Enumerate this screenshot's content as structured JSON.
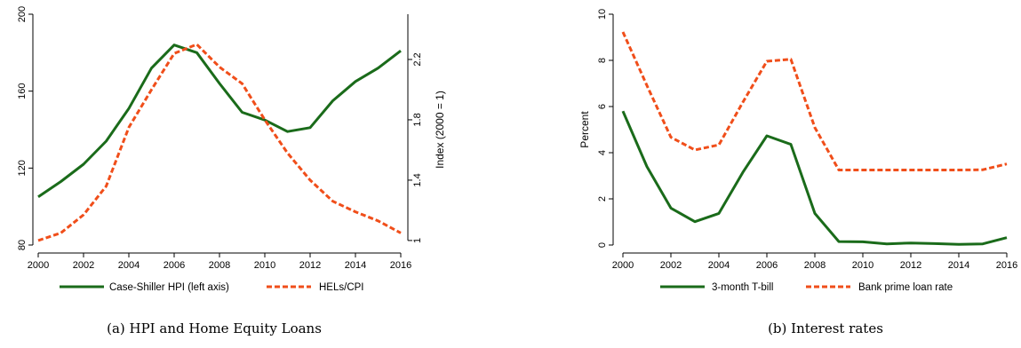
{
  "chart_data": [
    {
      "type": "line",
      "caption": "(a) HPI and Home Equity Loans",
      "x": [
        2000,
        2001,
        2002,
        2003,
        2004,
        2005,
        2006,
        2007,
        2008,
        2009,
        2010,
        2011,
        2012,
        2013,
        2014,
        2015,
        2016
      ],
      "xticks": [
        2000,
        2002,
        2004,
        2006,
        2008,
        2010,
        2012,
        2014,
        2016
      ],
      "ylim_left": [
        80,
        200
      ],
      "yticks_left": [
        80,
        120,
        160,
        200
      ],
      "ylim_right": [
        0.97,
        2.5
      ],
      "yticks_right": [
        1,
        1.4,
        1.8,
        2.2
      ],
      "ylabel_right": "Index (2000 = 1)",
      "legend_position": "bottom",
      "grid": false,
      "series": [
        {
          "name": "Case-Shiller HPI (left axis)",
          "axis": "left",
          "style": "solid",
          "color": "#1a6b1a",
          "values": [
            105,
            113,
            122,
            134,
            151,
            172,
            184,
            180,
            164,
            149,
            145,
            139,
            141,
            155,
            165,
            172,
            181
          ]
        },
        {
          "name": "HELs/CPI",
          "axis": "right",
          "style": "dashed",
          "color": "#f04e1a",
          "values": [
            1.0,
            1.05,
            1.17,
            1.36,
            1.75,
            2.0,
            2.24,
            2.3,
            2.15,
            2.04,
            1.8,
            1.58,
            1.4,
            1.26,
            1.19,
            1.13,
            1.05
          ]
        }
      ]
    },
    {
      "type": "line",
      "caption": "(b) Interest rates",
      "x": [
        2000,
        2001,
        2002,
        2003,
        2004,
        2005,
        2006,
        2007,
        2008,
        2009,
        2010,
        2011,
        2012,
        2013,
        2014,
        2015,
        2016
      ],
      "xticks": [
        2000,
        2002,
        2004,
        2006,
        2008,
        2010,
        2012,
        2014,
        2016
      ],
      "ylim": [
        0,
        10
      ],
      "yticks": [
        0,
        2,
        4,
        6,
        8,
        10
      ],
      "ylabel": "Percent",
      "legend_position": "bottom",
      "grid": false,
      "series": [
        {
          "name": "3-month T-bill",
          "style": "solid",
          "color": "#1a6b1a",
          "values": [
            5.8,
            3.4,
            1.6,
            1.01,
            1.37,
            3.15,
            4.73,
            4.36,
            1.37,
            0.15,
            0.14,
            0.05,
            0.09,
            0.06,
            0.03,
            0.05,
            0.32
          ]
        },
        {
          "name": "Bank prime loan rate",
          "style": "dashed",
          "color": "#f04e1a",
          "values": [
            9.23,
            6.91,
            4.67,
            4.12,
            4.34,
            6.19,
            7.96,
            8.05,
            5.09,
            3.25,
            3.25,
            3.25,
            3.25,
            3.25,
            3.25,
            3.26,
            3.51
          ]
        }
      ]
    }
  ]
}
